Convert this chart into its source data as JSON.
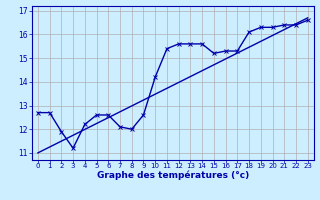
{
  "title": "",
  "xlabel": "Graphe des températures (°c)",
  "ylabel": "",
  "bg_color": "#cceeff",
  "grid_color": "#b0b0b0",
  "line_color": "#0000aa",
  "xlim": [
    -0.5,
    23.5
  ],
  "ylim": [
    10.7,
    17.2
  ],
  "xticks": [
    0,
    1,
    2,
    3,
    4,
    5,
    6,
    7,
    8,
    9,
    10,
    11,
    12,
    13,
    14,
    15,
    16,
    17,
    18,
    19,
    20,
    21,
    22,
    23
  ],
  "yticks": [
    11,
    12,
    13,
    14,
    15,
    16,
    17
  ],
  "curve1_x": [
    0,
    1,
    2,
    3,
    4,
    5,
    6,
    7,
    8,
    9,
    10,
    11,
    12,
    13,
    14,
    15,
    16,
    17,
    18,
    19,
    20,
    21,
    22,
    23
  ],
  "curve1_y": [
    12.7,
    12.7,
    11.9,
    11.2,
    12.2,
    12.6,
    12.6,
    12.1,
    12.0,
    12.6,
    14.2,
    15.4,
    15.6,
    15.6,
    15.6,
    15.2,
    15.3,
    15.3,
    16.1,
    16.3,
    16.3,
    16.4,
    16.4,
    16.6
  ],
  "curve2_x": [
    0,
    23
  ],
  "curve2_y": [
    11.0,
    16.7
  ]
}
